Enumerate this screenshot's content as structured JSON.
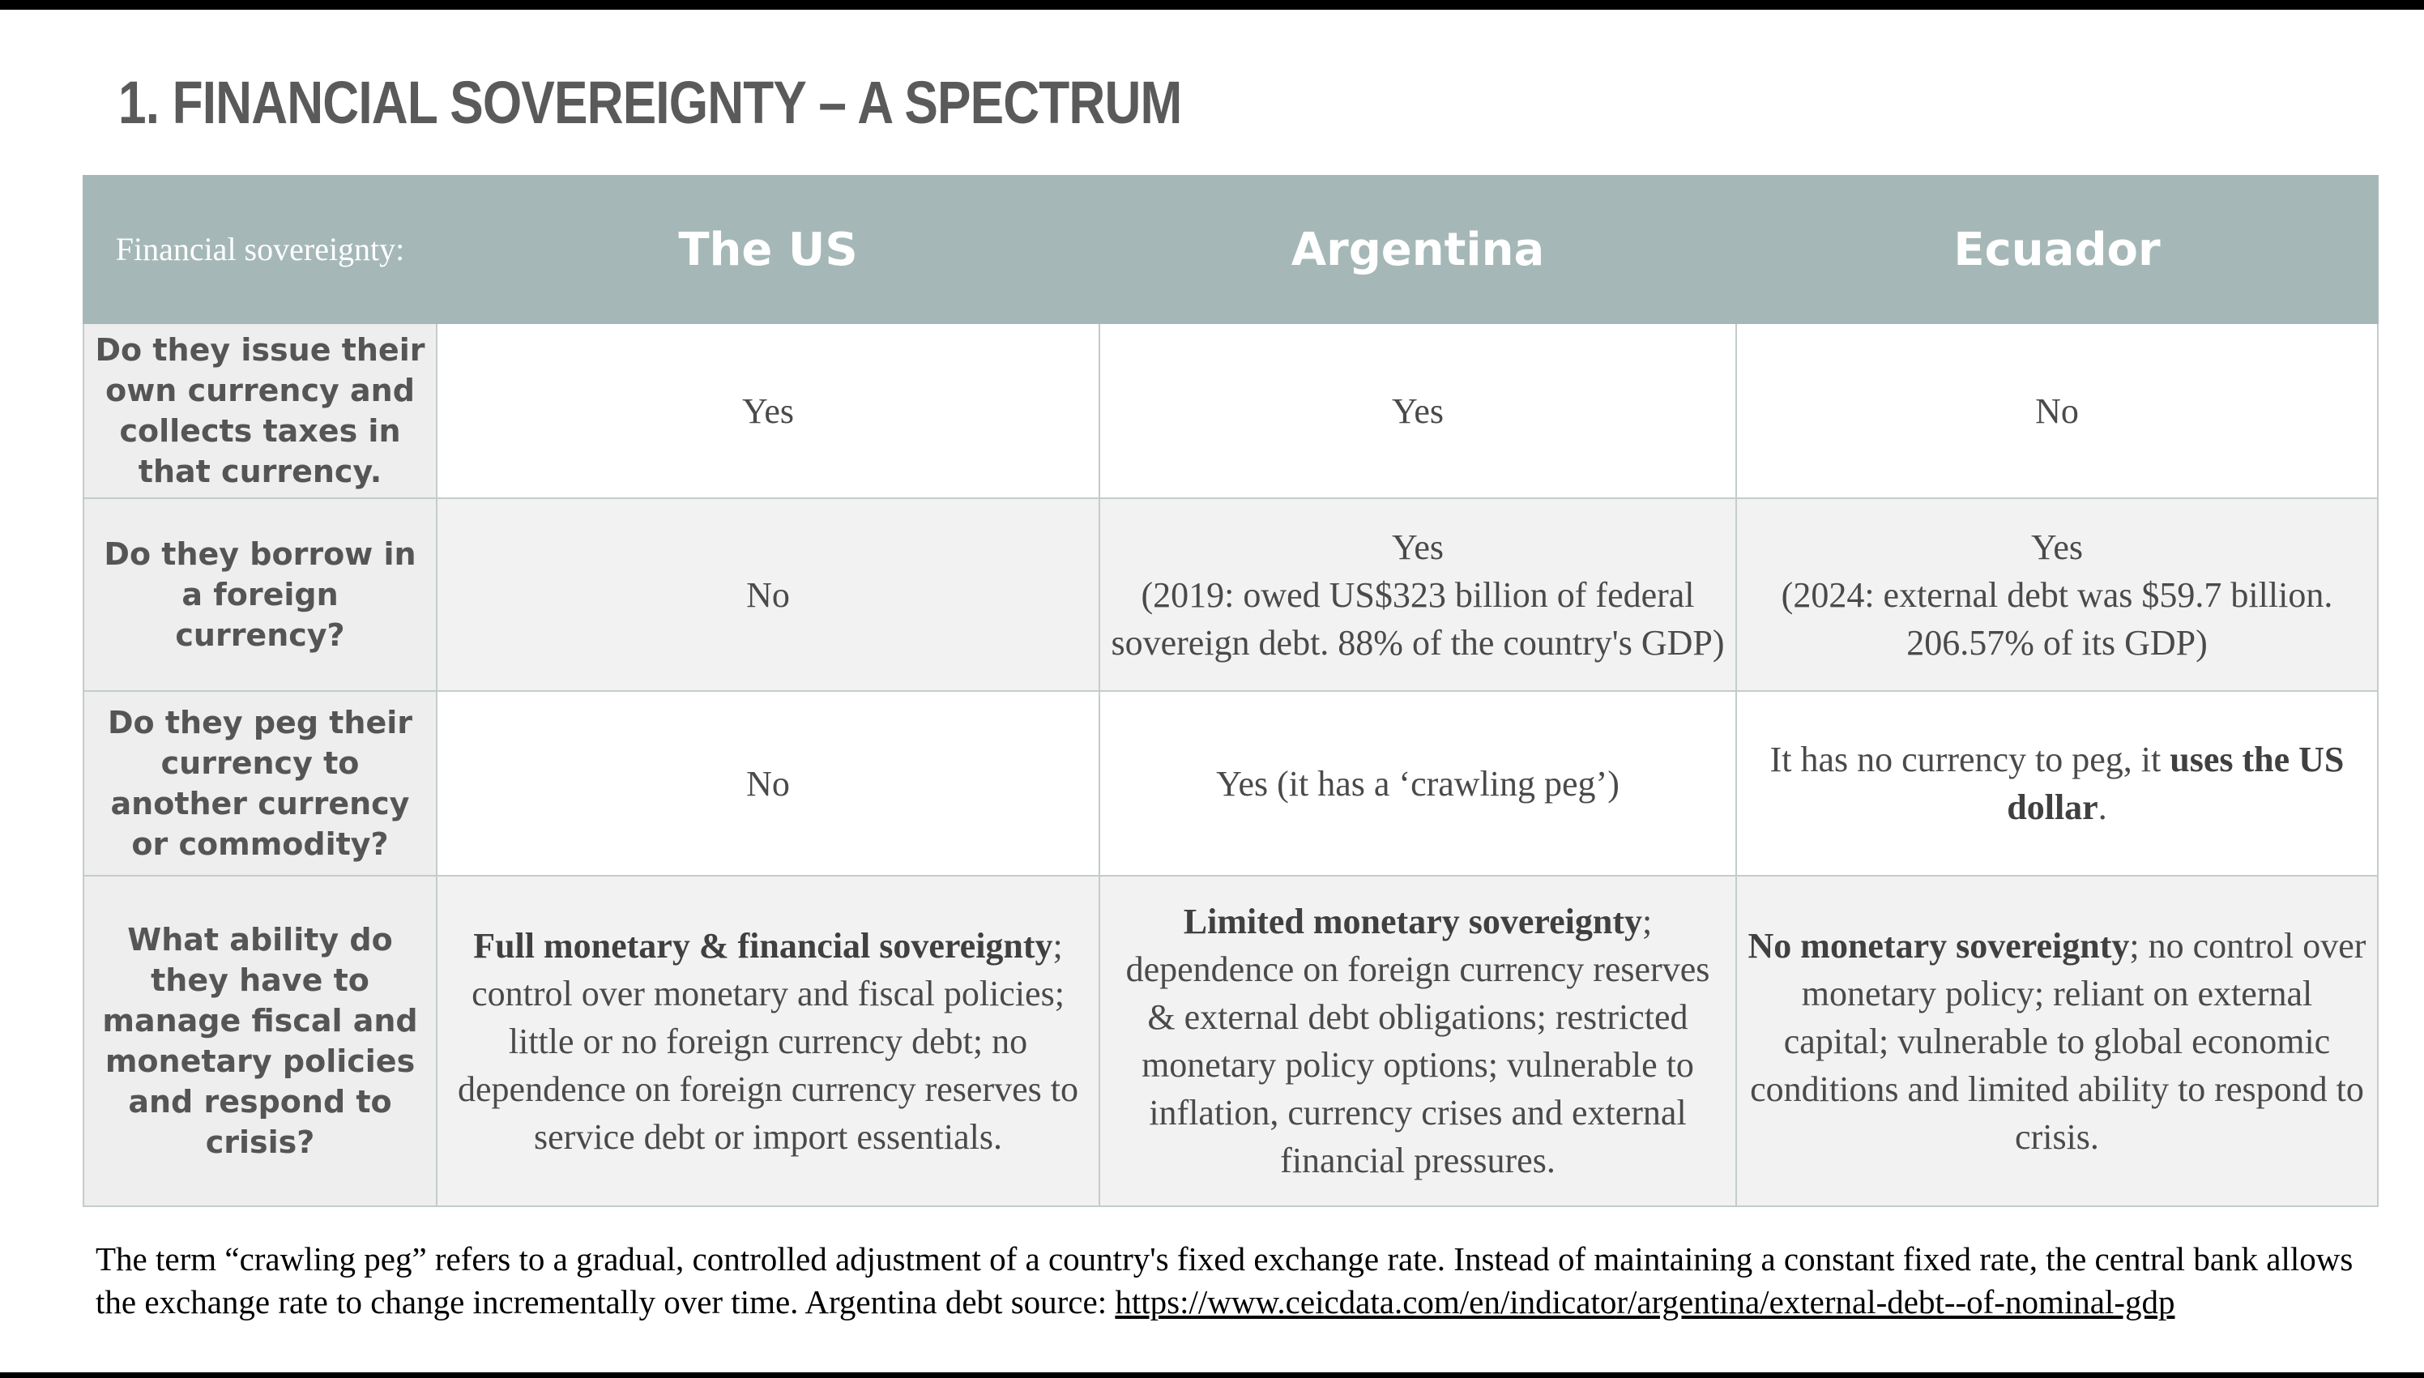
{
  "title": "1. FINANCIAL SOVEREIGNTY – A SPECTRUM",
  "table": {
    "corner_label": "Financial sovereignty:",
    "columns": [
      "The US",
      "Argentina",
      "Ecuador"
    ],
    "rows": [
      {
        "question": "Do they issue their own currency and collects  taxes in that currency.",
        "values": [
          "Yes",
          "Yes",
          "No"
        ]
      },
      {
        "question": "Do they borrow in a foreign currency?",
        "values": [
          "No",
          "Yes\n(2019: owed US$323 billion of federal sovereign debt. 88% of the country's GDP)",
          "Yes\n(2024: external debt was $59.7 billion. 206.57% of its GDP)"
        ]
      },
      {
        "question": "Do they peg their currency to another currency or commodity?",
        "values": [
          "No",
          "Yes (it has a ‘crawling peg’)",
          {
            "text": "It has no currency to peg, it ",
            "bold": "uses the US dollar",
            "rest": "."
          }
        ]
      },
      {
        "question": "What ability do they have to manage fiscal and monetary policies and respond to crisis?",
        "values": [
          {
            "bold": "Full monetary & financial sovereignty",
            "rest": "; control over monetary and fiscal policies; little or no foreign currency debt; no dependence on foreign currency reserves to service debt or import essentials."
          },
          {
            "bold": "Limited monetary sovereignty",
            "rest": "; dependence on foreign currency reserves & external debt obligations; restricted monetary policy options; vulnerable to inflation, currency crises and external financial pressures."
          },
          {
            "bold": "No monetary sovereignty",
            "rest": "; no control over monetary policy; reliant on external capital; vulnerable to global economic conditions and limited ability to respond to crisis."
          }
        ]
      }
    ]
  },
  "footnote": {
    "text": "The term “crawling peg” refers to a gradual, controlled adjustment of a country's fixed exchange rate. Instead of maintaining a constant fixed rate, the central bank allows the exchange rate to change incrementally over time. Argentina debt source: ",
    "link": "https://www.ceicdata.com/en/indicator/argentina/external-debt--of-nominal-gdp"
  },
  "colors": {
    "header_bg": "#a5b8b7",
    "question_bg": "#eeeeee",
    "alt_row_bg": "#f2f2f2",
    "title": "#5a5a5a"
  }
}
